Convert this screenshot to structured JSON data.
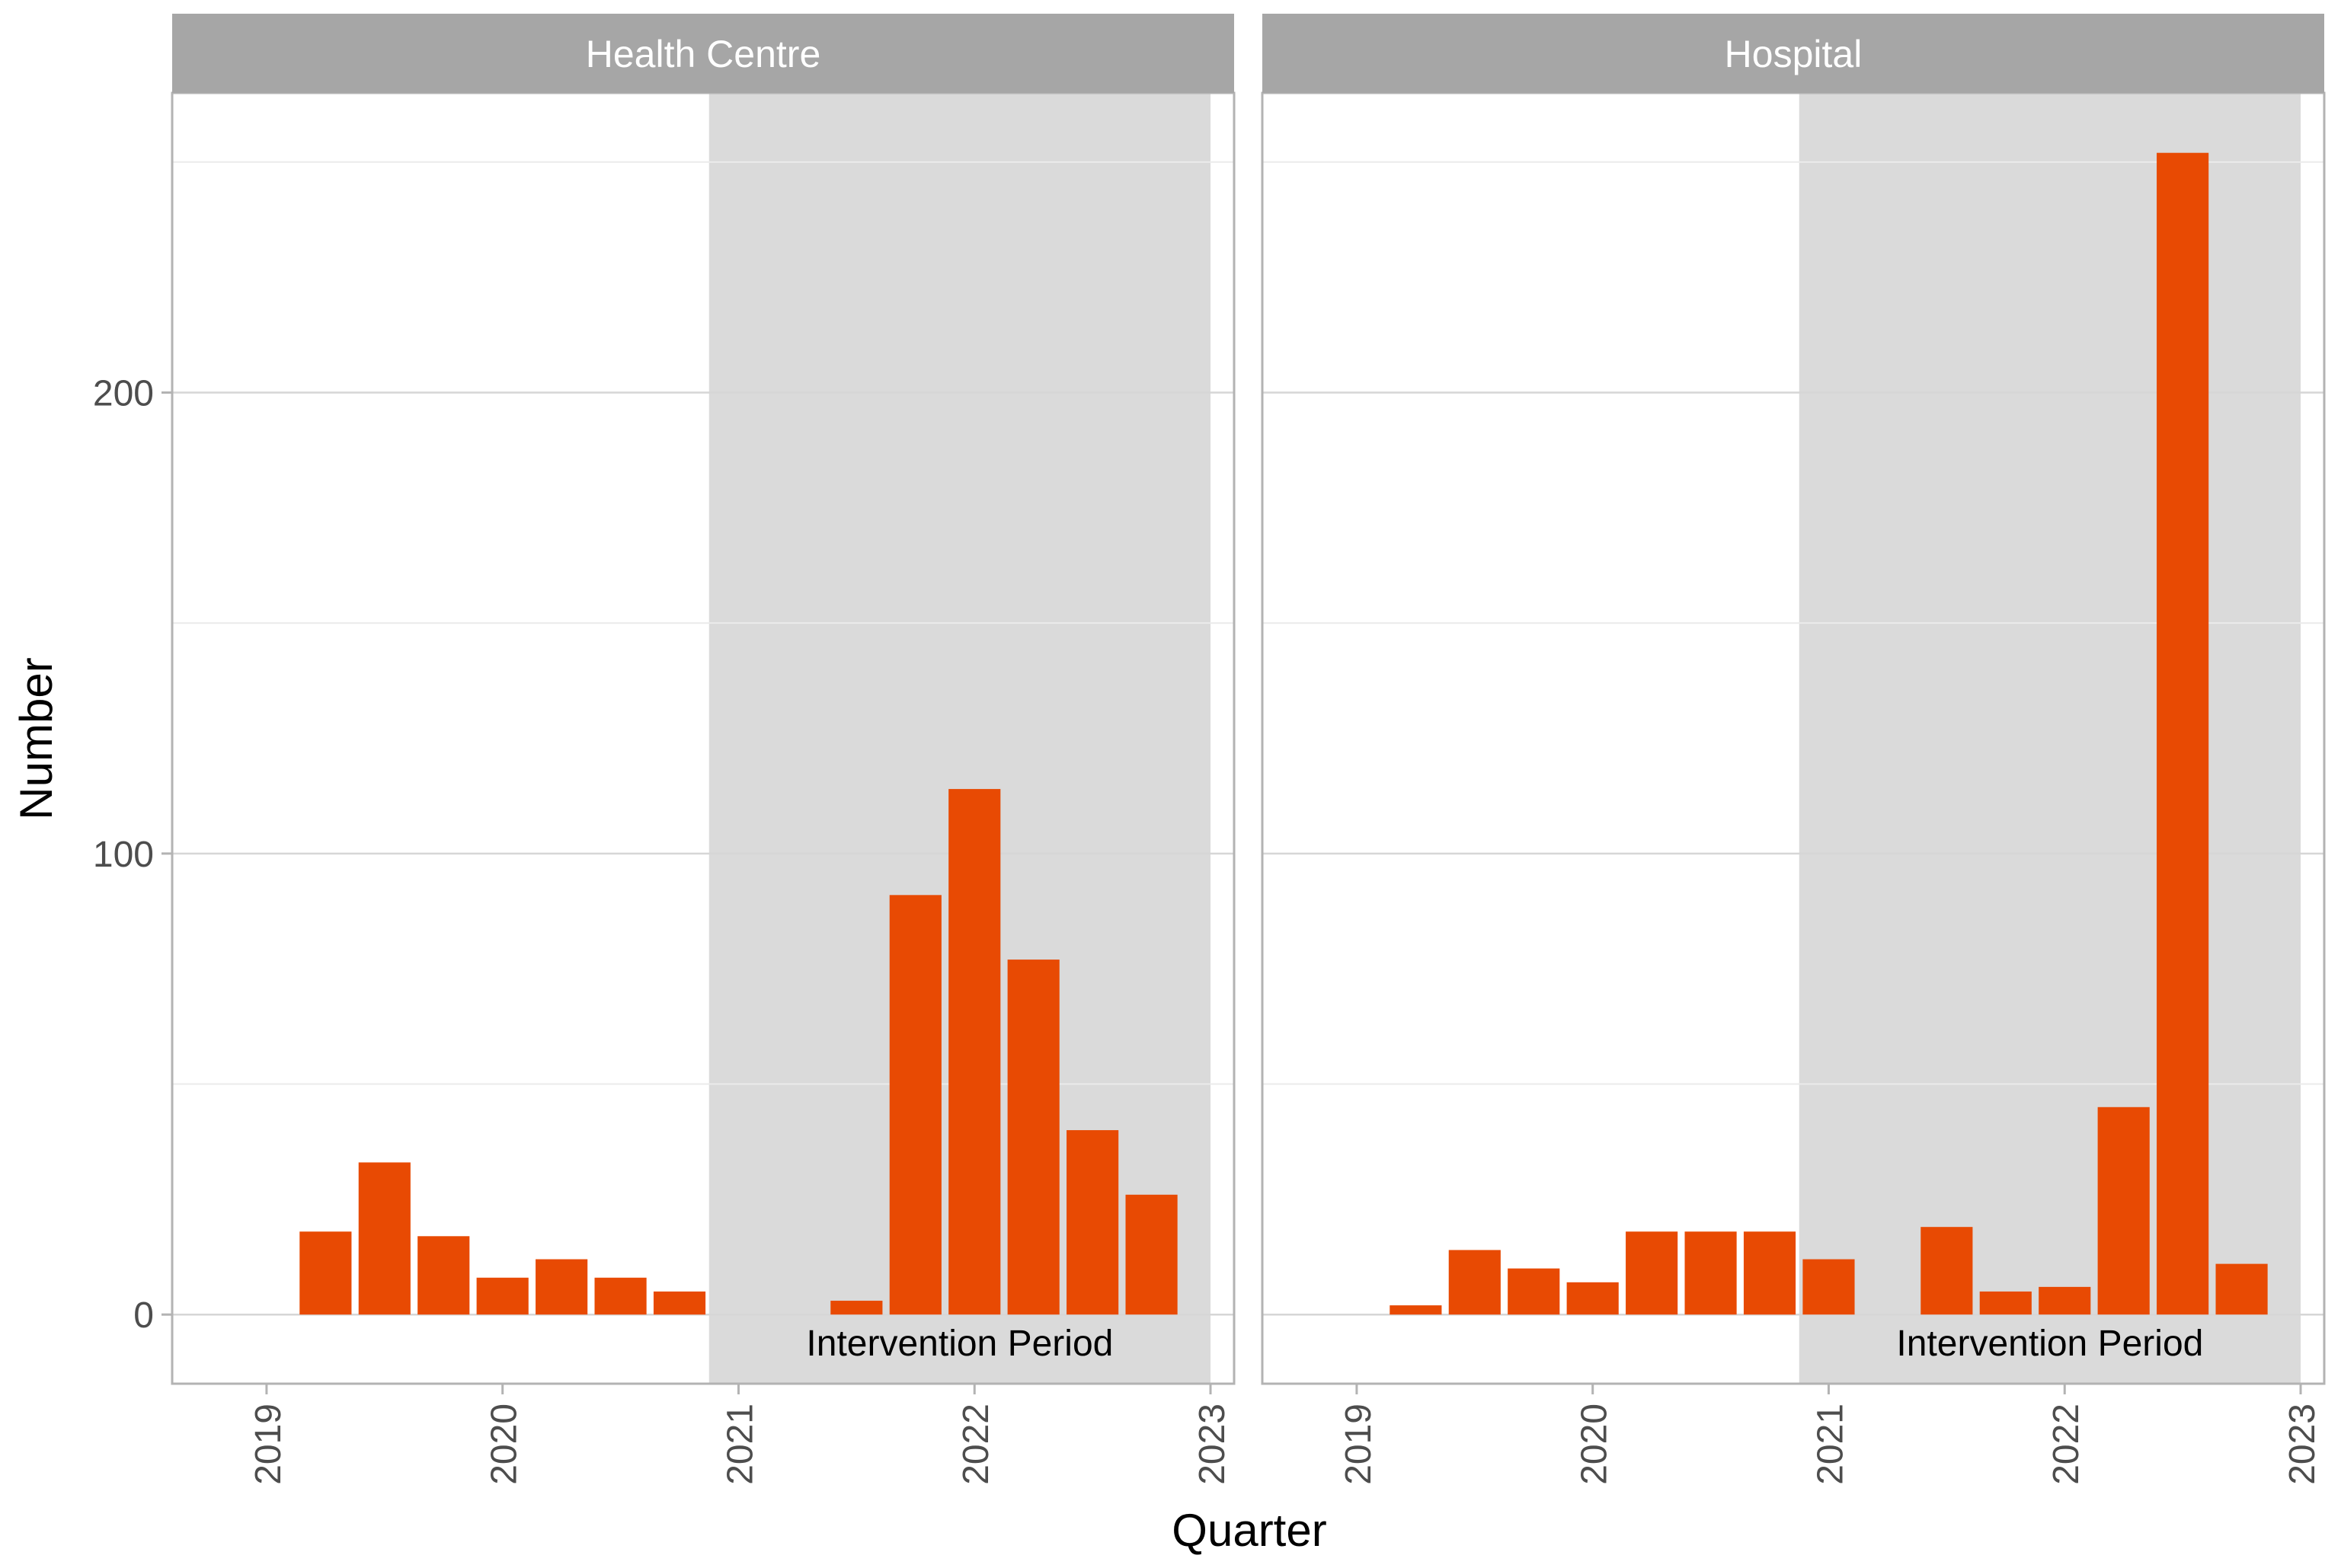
{
  "colors": {
    "bar": "#E84A03",
    "shade": "#DADADA",
    "strip": "#A6A6A6",
    "strip_text": "#FFFFFF",
    "grid_major": "#D6D6D6",
    "grid_minor": "#EBEBEB",
    "border": "#B3B3B3",
    "axis_text": "#4D4D4D",
    "title_text": "#000000"
  },
  "chart_data": {
    "type": "bar",
    "xlabel": "Quarter",
    "ylabel": "Number",
    "y_ticks": [
      0,
      100,
      200
    ],
    "ylim": [
      -15,
      265
    ],
    "xlim": [
      2018.6,
      2023.1
    ],
    "x_ticks": [
      2019,
      2020,
      2021,
      2022,
      2023
    ],
    "x_tick_labels": [
      "2019",
      "2020",
      "2021",
      "2022",
      "2023"
    ],
    "bar_width_years": 0.22,
    "panels": [
      {
        "name": "Health Centre",
        "intervention": {
          "start": 2020.875,
          "end": 2023.0,
          "label": "Intervention Period"
        },
        "bars": [
          {
            "x": 2019.25,
            "value": 18
          },
          {
            "x": 2019.5,
            "value": 33
          },
          {
            "x": 2019.75,
            "value": 17
          },
          {
            "x": 2020.0,
            "value": 8
          },
          {
            "x": 2020.25,
            "value": 12
          },
          {
            "x": 2020.5,
            "value": 8
          },
          {
            "x": 2020.75,
            "value": 5
          },
          {
            "x": 2021.5,
            "value": 3
          },
          {
            "x": 2021.75,
            "value": 91
          },
          {
            "x": 2022.0,
            "value": 114
          },
          {
            "x": 2022.25,
            "value": 77
          },
          {
            "x": 2022.5,
            "value": 40
          },
          {
            "x": 2022.75,
            "value": 26
          }
        ]
      },
      {
        "name": "Hospital",
        "intervention": {
          "start": 2020.875,
          "end": 2023.0,
          "label": "Intervention Period"
        },
        "bars": [
          {
            "x": 2019.25,
            "value": 2
          },
          {
            "x": 2019.5,
            "value": 14
          },
          {
            "x": 2019.75,
            "value": 10
          },
          {
            "x": 2020.0,
            "value": 7
          },
          {
            "x": 2020.25,
            "value": 18
          },
          {
            "x": 2020.5,
            "value": 18
          },
          {
            "x": 2020.75,
            "value": 18
          },
          {
            "x": 2021.0,
            "value": 12
          },
          {
            "x": 2021.5,
            "value": 19
          },
          {
            "x": 2021.75,
            "value": 5
          },
          {
            "x": 2022.0,
            "value": 6
          },
          {
            "x": 2022.25,
            "value": 45
          },
          {
            "x": 2022.5,
            "value": 252
          },
          {
            "x": 2022.75,
            "value": 11
          }
        ]
      }
    ]
  }
}
